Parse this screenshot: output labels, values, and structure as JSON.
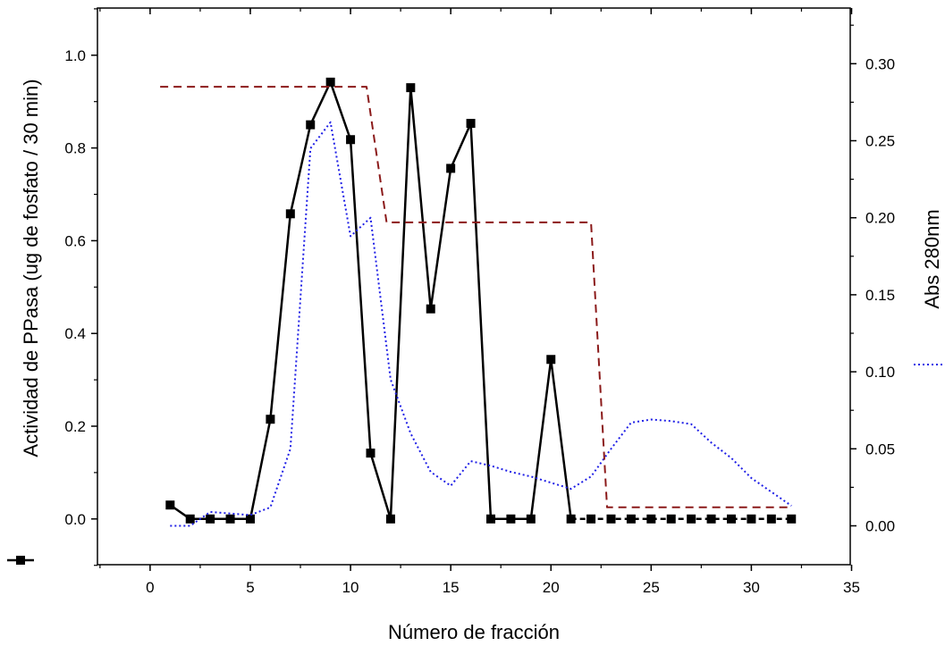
{
  "chart_data": {
    "type": "line",
    "title": "",
    "xlabel": "Número de fracción",
    "ylabel_left": "Actividad de PPasa (ug de fosfato / 30 min)",
    "ylabel_right": "Abs 280nm",
    "xlim": [
      -3,
      35
    ],
    "ylim_left": [
      -0.1,
      1.1
    ],
    "ylim_right": [
      -0.0133,
      0.3533
    ],
    "x_ticks": [
      0,
      5,
      10,
      15,
      20,
      25,
      30,
      35
    ],
    "y_left_ticks": [
      0.0,
      0.2,
      0.4,
      0.6,
      0.8,
      1.0
    ],
    "y_left_tick_labels": [
      "0.0",
      "0.2",
      "0.4",
      "0.6",
      "0.8",
      "1.0"
    ],
    "y_right_ticks": [
      0.0,
      0.05,
      0.1,
      0.15,
      0.2,
      0.25,
      0.3
    ],
    "y_right_tick_labels": [
      "0.00",
      "0.05",
      "0.10",
      "0.15",
      "0.20",
      "0.25",
      "0.30"
    ],
    "grid": false,
    "series": [
      {
        "axis": "left",
        "style": "solid-square-markers",
        "color": "#000000",
        "x": [
          1,
          2,
          3,
          4,
          5,
          6,
          7,
          8,
          9,
          10,
          11,
          12,
          13,
          14,
          15,
          16,
          17,
          18,
          19,
          20,
          21,
          22,
          23,
          24,
          25,
          26,
          27,
          28,
          29,
          30,
          31,
          32
        ],
        "y": [
          0.03,
          0.0,
          0.0,
          0.0,
          0.0,
          0.215,
          0.658,
          0.85,
          0.942,
          0.818,
          0.142,
          0.0,
          0.93,
          0.453,
          0.756,
          0.853,
          0.0,
          0.0,
          0.0,
          0.344,
          0.0,
          0.0,
          0.0,
          0.0,
          0.0,
          0.0,
          0.0,
          0.0,
          0.0,
          0.0,
          0.0,
          0.0
        ],
        "dashed_from_x": 21
      },
      {
        "axis": "right",
        "style": "dotted",
        "color": "#1f1fe6",
        "x": [
          1,
          2,
          3,
          4,
          5,
          6,
          7,
          8,
          9,
          10,
          11,
          12,
          13,
          14,
          15,
          16,
          17,
          18,
          19,
          20,
          21,
          22,
          23,
          24,
          25,
          26,
          27,
          28,
          29,
          30,
          31,
          32
        ],
        "y": [
          0.0,
          0.0,
          0.009,
          0.008,
          0.007,
          0.012,
          0.05,
          0.245,
          0.262,
          0.188,
          0.2,
          0.095,
          0.06,
          0.035,
          0.026,
          0.042,
          0.039,
          0.035,
          0.032,
          0.028,
          0.024,
          0.032,
          0.05,
          0.067,
          0.069,
          0.068,
          0.066,
          0.054,
          0.044,
          0.031,
          0.022,
          0.013
        ]
      },
      {
        "axis": "right",
        "style": "dashed",
        "color": "#8b1a1a",
        "x": [
          0.5,
          10.8,
          11.8,
          22.0,
          22.8,
          32.0
        ],
        "y": [
          0.285,
          0.285,
          0.197,
          0.197,
          0.012,
          0.012
        ]
      }
    ]
  }
}
